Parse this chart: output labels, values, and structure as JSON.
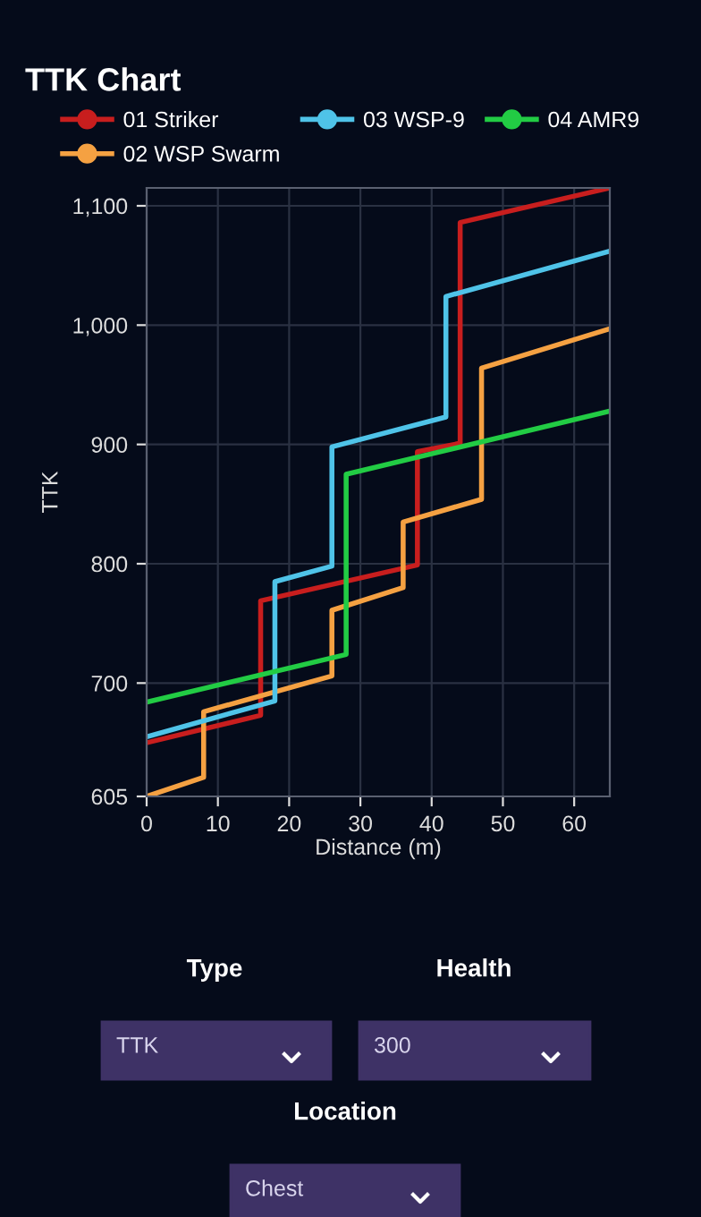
{
  "chart_data": {
    "type": "line",
    "title": "TTK Chart",
    "xlabel": "Distance (m)",
    "ylabel": "TTK",
    "xlim": [
      0,
      65
    ],
    "xticks": [
      0,
      10,
      20,
      30,
      40,
      50,
      60
    ],
    "ylim": [
      605,
      1115
    ],
    "yticks": [
      605,
      {
        "value": 700,
        "label": "700"
      },
      {
        "value": 800,
        "label": "800"
      },
      {
        "value": 900,
        "label": "900"
      },
      {
        "value": 1000,
        "label": "1,000"
      },
      {
        "value": 1100,
        "label": "1,100"
      }
    ],
    "grid": true,
    "legend": "top",
    "series": [
      {
        "name": "01 Striker",
        "color": "#c81e1e",
        "x": [
          0,
          16,
          16,
          38,
          38,
          44,
          44,
          65
        ],
        "values": [
          650,
          673,
          769,
          799,
          894,
          901,
          1086,
          1115
        ]
      },
      {
        "name": "02 WSP Swarm",
        "color": "#f5a142",
        "x": [
          0,
          8,
          8,
          26,
          26,
          36,
          36,
          47,
          47,
          65
        ],
        "values": [
          605,
          621,
          676,
          706,
          761,
          780,
          835,
          854,
          964,
          997
        ]
      },
      {
        "name": "03 WSP-9",
        "color": "#4fc3e8",
        "x": [
          0,
          18,
          18,
          26,
          26,
          42,
          42,
          65
        ],
        "values": [
          655,
          685,
          785,
          798,
          898,
          923,
          1024,
          1062
        ]
      },
      {
        "name": "04 AMR9",
        "color": "#22cc44",
        "x": [
          0,
          28,
          28,
          65
        ],
        "values": [
          684,
          724,
          875,
          928
        ]
      }
    ],
    "annotations": [
      "Type",
      "Health",
      "TTK",
      "300",
      "Location",
      "Chest"
    ]
  }
}
